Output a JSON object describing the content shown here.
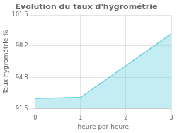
{
  "chart_data": {
    "type": "area",
    "title": "Evolution du taux d'hygrométrie",
    "xlabel": "heure par heure",
    "ylabel": "Taux hygrométrie %",
    "x": [
      0,
      1,
      3
    ],
    "values": [
      92.6,
      92.7,
      99.5
    ],
    "color": "#55ccdd",
    "xlim": [
      0,
      3
    ],
    "ylim": [
      91.5,
      101.5
    ],
    "xticks": [
      0,
      1,
      2,
      3
    ],
    "yticks": [
      91.5,
      94.8,
      98.2,
      101.5
    ],
    "grid": true
  }
}
